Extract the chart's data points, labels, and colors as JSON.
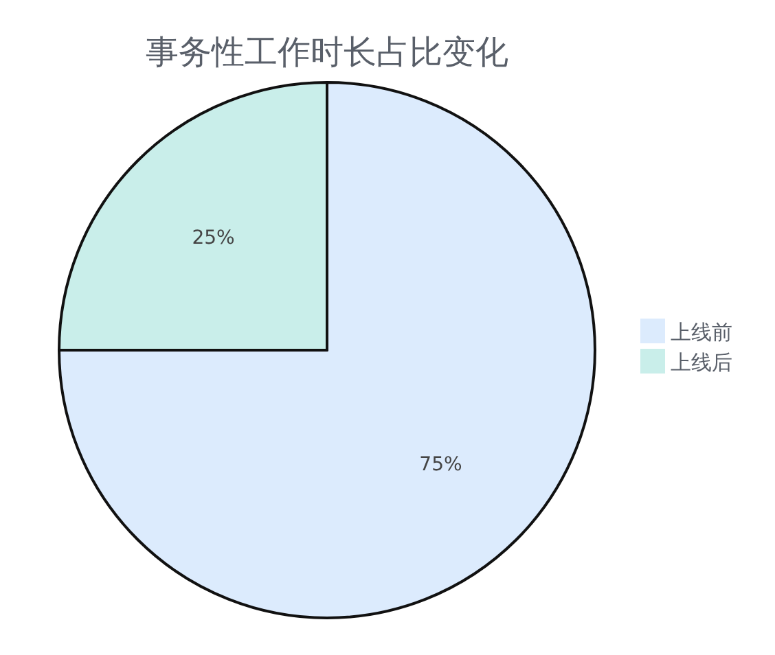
{
  "chart_data": {
    "type": "pie",
    "title": "事务性工作时长占比变化",
    "categories": [
      "上线前",
      "上线后"
    ],
    "values": [
      75,
      25
    ],
    "value_labels": [
      "75%",
      "25%"
    ],
    "colors": [
      "#dcebfd",
      "#c9eeea"
    ],
    "legend": "right"
  }
}
